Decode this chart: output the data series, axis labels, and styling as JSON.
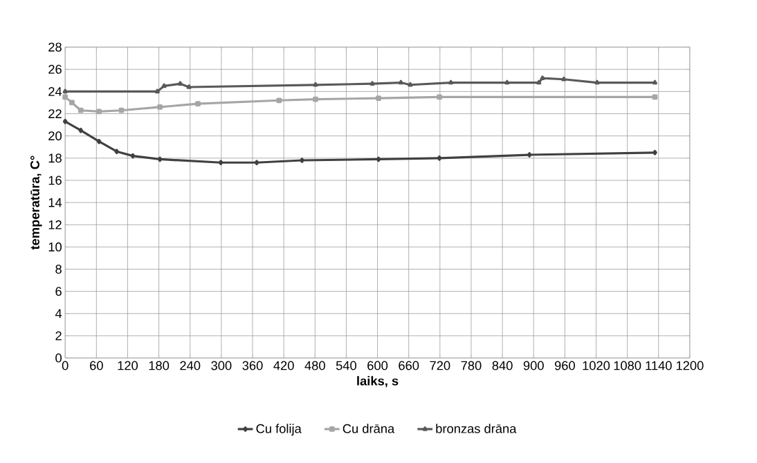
{
  "chart_data": {
    "type": "line",
    "xlabel": "laiks, s",
    "ylabel": "temperatūra, C°",
    "xlim": [
      0,
      1200
    ],
    "ylim": [
      0,
      28
    ],
    "xticks": [
      0,
      60,
      120,
      180,
      240,
      300,
      360,
      420,
      480,
      540,
      600,
      660,
      720,
      780,
      840,
      900,
      960,
      1020,
      1080,
      1140,
      1200
    ],
    "yticks": [
      0,
      2,
      4,
      6,
      8,
      10,
      12,
      14,
      16,
      18,
      20,
      22,
      24,
      26,
      28
    ],
    "grid": true,
    "legend": "bottom",
    "series": [
      {
        "name": "Cu folija",
        "color": "#404040",
        "marker": "diamond",
        "x": [
          0,
          30,
          65,
          99,
          130,
          182,
          299,
          368,
          455,
          602,
          719,
          892,
          1133
        ],
        "values": [
          21.3,
          20.5,
          19.5,
          18.6,
          18.2,
          17.9,
          17.6,
          17.6,
          17.8,
          17.9,
          18.0,
          18.3,
          18.5
        ]
      },
      {
        "name": "Cu drāna",
        "color": "#a6a6a6",
        "marker": "square",
        "x": [
          0,
          13,
          30,
          65,
          108,
          182,
          255,
          411,
          481,
          602,
          719,
          1133
        ],
        "values": [
          23.5,
          23.0,
          22.3,
          22.2,
          22.3,
          22.6,
          22.9,
          23.2,
          23.3,
          23.4,
          23.5,
          23.5
        ]
      },
      {
        "name": "bronzas drāna",
        "color": "#595959",
        "marker": "triangle",
        "x": [
          0,
          177,
          190,
          221,
          238,
          481,
          590,
          645,
          663,
          741,
          849,
          910,
          917,
          958,
          1022,
          1133
        ],
        "values": [
          24.0,
          24.0,
          24.5,
          24.7,
          24.4,
          24.6,
          24.7,
          24.8,
          24.6,
          24.8,
          24.8,
          24.8,
          25.2,
          25.1,
          24.8,
          24.8
        ]
      }
    ]
  }
}
